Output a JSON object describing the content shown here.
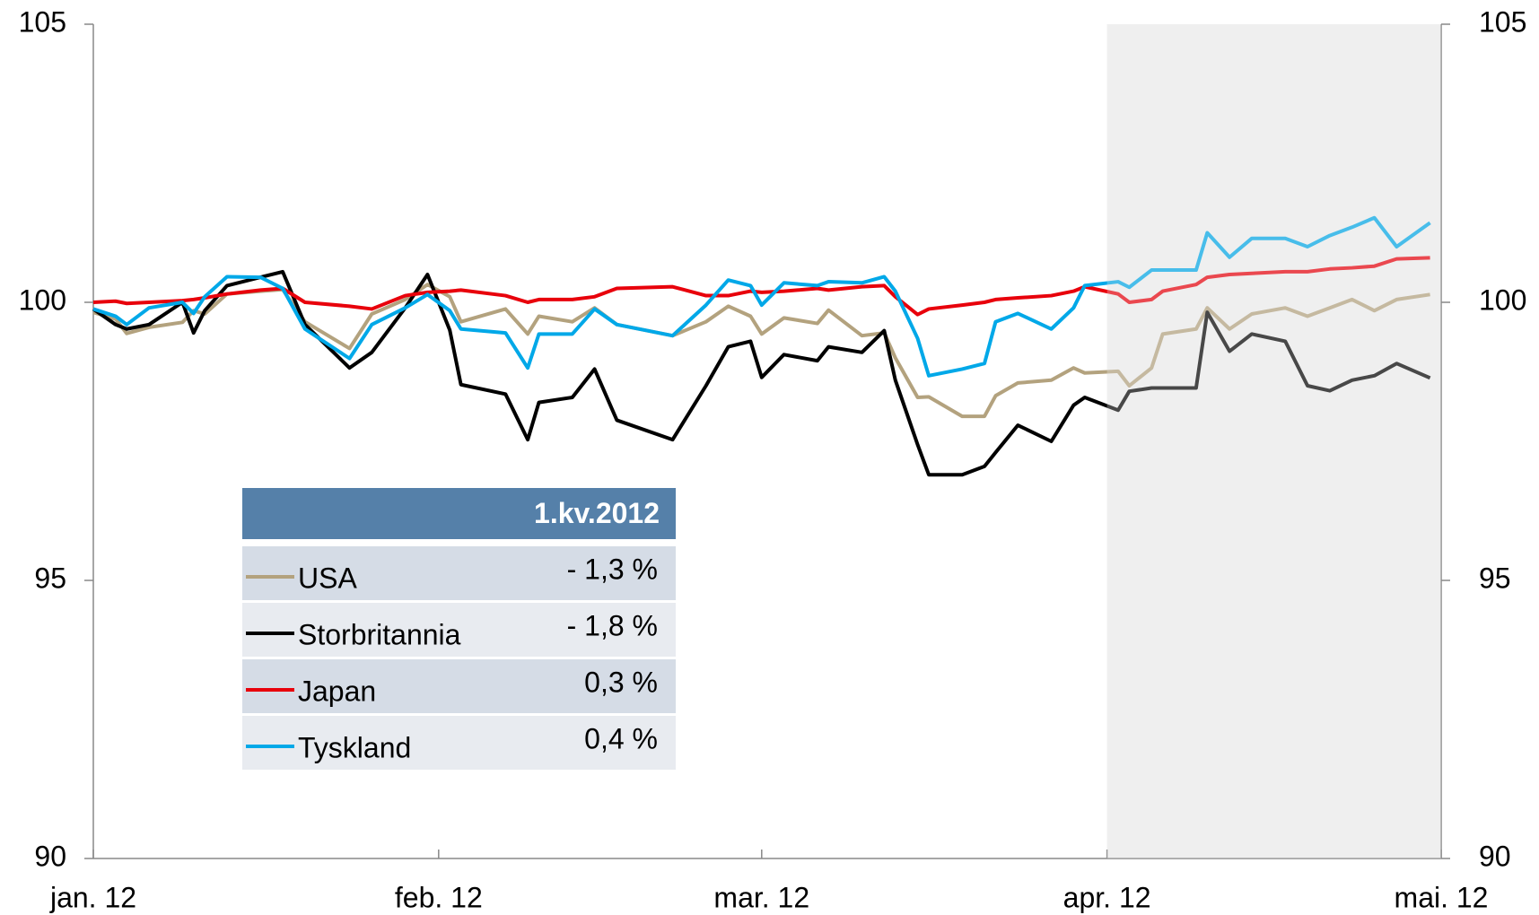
{
  "chart_data": {
    "type": "line",
    "x": [
      0,
      2,
      3,
      5,
      8,
      9,
      10,
      12,
      15,
      17,
      19,
      23,
      25,
      28,
      30,
      32,
      33,
      37,
      39,
      40,
      43,
      45,
      47,
      52,
      55,
      57,
      59,
      60,
      62,
      65,
      66,
      69,
      71,
      72,
      74,
      75,
      78,
      80,
      81,
      83,
      86,
      88,
      89,
      92,
      93,
      95,
      96,
      99,
      100,
      102,
      104,
      107,
      109,
      111,
      113,
      115,
      117,
      120
    ],
    "xlim": [
      0,
      121
    ],
    "xticks": [
      {
        "value": 0,
        "label": "jan. 12"
      },
      {
        "value": 31,
        "label": "feb. 12"
      },
      {
        "value": 60,
        "label": "mar. 12"
      },
      {
        "value": 91,
        "label": "apr. 12"
      },
      {
        "value": 121,
        "label": "mai. 12"
      }
    ],
    "ylim": [
      90,
      105
    ],
    "yticks": [
      90,
      95,
      100,
      105
    ],
    "y2lim": [
      90,
      105
    ],
    "y2ticks": [
      90,
      95,
      100,
      105
    ],
    "shaded_xlim": [
      91,
      121
    ],
    "series": [
      {
        "name": "USA",
        "color": "#b3a27e",
        "values": [
          99.82,
          99.7,
          99.44,
          99.55,
          99.64,
          99.85,
          99.79,
          100.15,
          100.2,
          100.23,
          99.65,
          99.17,
          99.79,
          100.05,
          100.32,
          100.1,
          99.65,
          99.88,
          99.43,
          99.75,
          99.65,
          99.9,
          99.6,
          99.4,
          99.65,
          99.93,
          99.75,
          99.43,
          99.72,
          99.62,
          99.86,
          99.4,
          99.45,
          99.0,
          98.29,
          98.3,
          97.95,
          97.95,
          98.32,
          98.55,
          98.6,
          98.82,
          98.73,
          98.76,
          98.5,
          98.82,
          99.43,
          99.52,
          99.9,
          99.52,
          99.79,
          99.9,
          99.75,
          99.9,
          100.05,
          99.85,
          100.05,
          100.14
        ]
      },
      {
        "name": "Storbritannia",
        "color": "#000000",
        "values": [
          99.88,
          99.6,
          99.52,
          99.6,
          100.0,
          99.45,
          99.85,
          100.3,
          100.45,
          100.55,
          99.6,
          98.82,
          99.1,
          99.9,
          100.5,
          99.5,
          98.52,
          98.35,
          97.53,
          98.2,
          98.29,
          98.8,
          97.88,
          97.53,
          98.5,
          99.2,
          99.3,
          98.65,
          99.06,
          98.95,
          99.2,
          99.1,
          99.49,
          98.6,
          97.44,
          96.9,
          96.9,
          97.05,
          97.3,
          97.79,
          97.5,
          98.15,
          98.29,
          98.06,
          98.4,
          98.46,
          98.46,
          98.46,
          99.82,
          99.12,
          99.43,
          99.3,
          98.5,
          98.41,
          98.6,
          98.68,
          98.9,
          98.64
        ]
      },
      {
        "name": "Japan",
        "color": "#e8000b",
        "values": [
          100.0,
          100.02,
          99.98,
          100.0,
          100.03,
          100.05,
          100.08,
          100.15,
          100.22,
          100.25,
          100.0,
          99.93,
          99.88,
          100.12,
          100.18,
          100.2,
          100.22,
          100.12,
          100.0,
          100.05,
          100.05,
          100.1,
          100.25,
          100.28,
          100.12,
          100.12,
          100.2,
          100.18,
          100.2,
          100.25,
          100.22,
          100.28,
          100.3,
          100.1,
          99.78,
          99.88,
          99.95,
          100.0,
          100.05,
          100.08,
          100.12,
          100.2,
          100.28,
          100.15,
          100.0,
          100.05,
          100.2,
          100.32,
          100.45,
          100.5,
          100.52,
          100.55,
          100.55,
          100.6,
          100.62,
          100.65,
          100.78,
          100.8
        ]
      },
      {
        "name": "Tyskland",
        "color": "#00a8e8",
        "values": [
          99.88,
          99.75,
          99.6,
          99.9,
          100.0,
          99.8,
          100.1,
          100.46,
          100.45,
          100.25,
          99.52,
          98.99,
          99.6,
          99.9,
          100.14,
          99.85,
          99.52,
          99.45,
          98.82,
          99.43,
          99.43,
          99.88,
          99.6,
          99.4,
          99.95,
          100.4,
          100.3,
          99.95,
          100.35,
          100.3,
          100.37,
          100.35,
          100.46,
          100.2,
          99.35,
          98.68,
          98.8,
          98.9,
          99.65,
          99.8,
          99.52,
          99.9,
          100.3,
          100.37,
          100.27,
          100.58,
          100.58,
          100.58,
          101.25,
          100.81,
          101.15,
          101.15,
          101.0,
          101.2,
          101.35,
          101.52,
          101.0,
          101.43
        ]
      }
    ],
    "legend_table": {
      "header": "1.kv.2012",
      "values": [
        -1.3,
        -1.8,
        0.3,
        0.4
      ],
      "value_labels": [
        "- 1,3 %",
        "- 1,8 %",
        "0,3 %",
        "0,4 %"
      ]
    }
  }
}
